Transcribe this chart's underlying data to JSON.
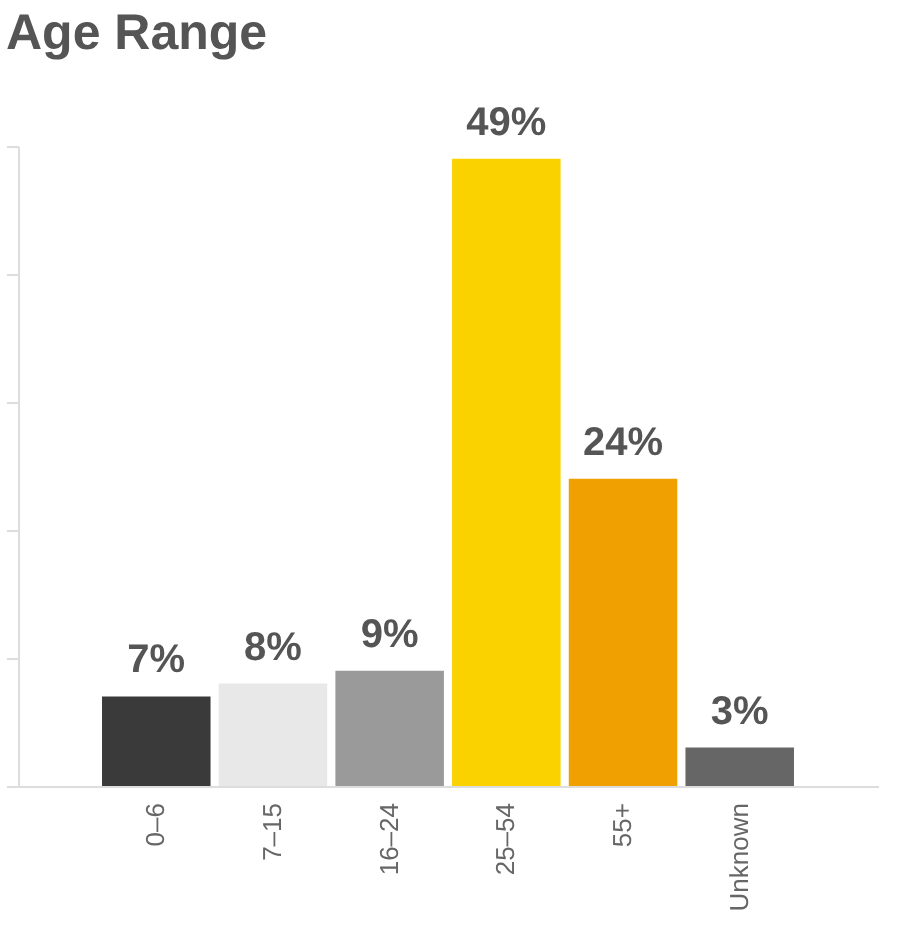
{
  "chart_data": {
    "type": "bar",
    "title": "Age Range",
    "categories": [
      "0–6",
      "7–15",
      "16–24",
      "25–54",
      "55+",
      "Unknown"
    ],
    "values": [
      7,
      8,
      9,
      49,
      24,
      3
    ],
    "colors": [
      "#3a3a3a",
      "#e8e8e8",
      "#9a9a9a",
      "#f9d200",
      "#f0a000",
      "#666666"
    ],
    "value_labels": [
      "7%",
      "8%",
      "9%",
      "49%",
      "24%",
      "3%"
    ],
    "ylim": [
      0,
      50
    ],
    "yticks": [
      {
        "value": 0,
        "label": null
      },
      {
        "value": 10,
        "label": null
      },
      {
        "value": 20,
        "label": null
      },
      {
        "value": 30,
        "label": null
      },
      {
        "value": 40,
        "label": null
      },
      {
        "value": 50,
        "label": null
      }
    ],
    "tick_labels": "x",
    "grid": false
  }
}
